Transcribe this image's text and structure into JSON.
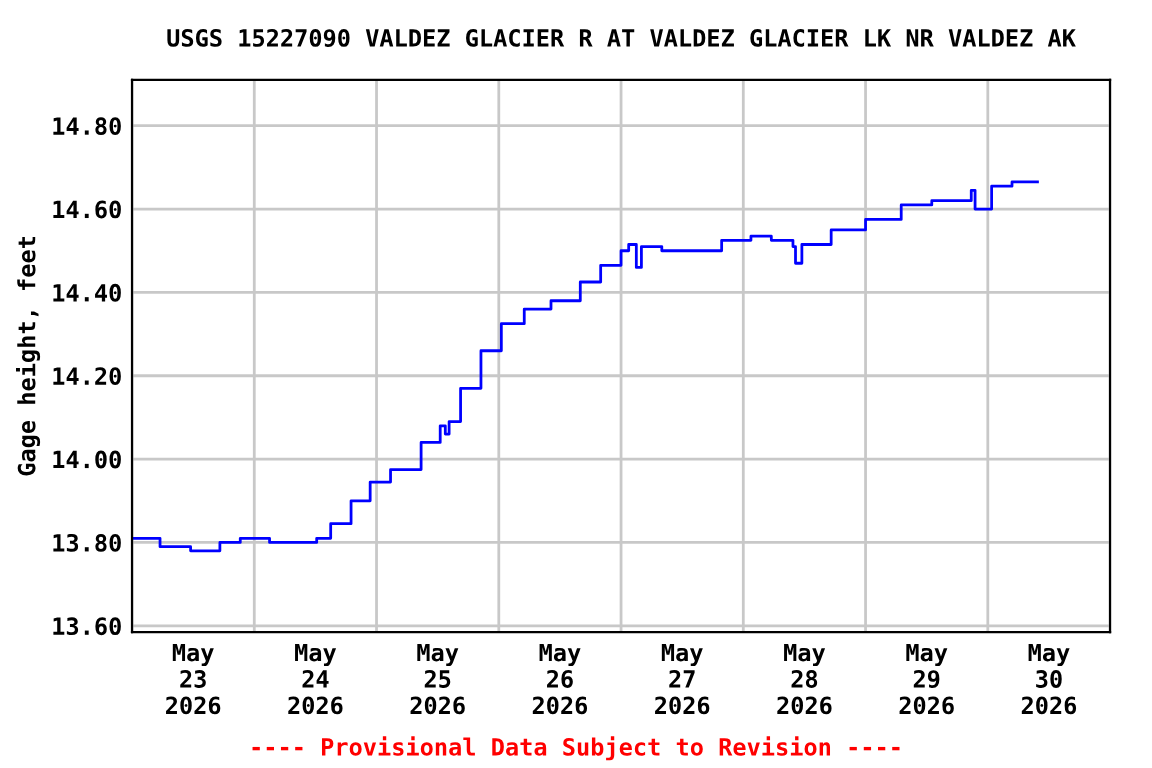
{
  "chart_data": {
    "type": "step",
    "title": "USGS 15227090 VALDEZ GLACIER R AT VALDEZ GLACIER LK NR VALDEZ AK",
    "ylabel": "Gage height, feet",
    "annotations": [
      "---- Provisional Data Subject to Revision ----"
    ],
    "x": [
      "2026-05-23T00:00",
      "2026-05-23T05:30",
      "2026-05-23T11:30",
      "2026-05-23T17:15",
      "2026-05-23T21:15",
      "2026-05-24T00:00",
      "2026-05-24T03:00",
      "2026-05-24T09:00",
      "2026-05-24T12:15",
      "2026-05-24T15:00",
      "2026-05-24T19:00",
      "2026-05-24T22:45",
      "2026-05-25T02:45",
      "2026-05-25T08:45",
      "2026-05-25T12:30",
      "2026-05-25T13:30",
      "2026-05-25T14:15",
      "2026-05-25T16:30",
      "2026-05-25T20:30",
      "2026-05-26T00:30",
      "2026-05-26T05:00",
      "2026-05-26T10:15",
      "2026-05-26T16:00",
      "2026-05-26T20:00",
      "2026-05-27T00:00",
      "2026-05-27T01:30",
      "2026-05-27T03:00",
      "2026-05-27T04:00",
      "2026-05-27T08:00",
      "2026-05-27T13:45",
      "2026-05-27T19:45",
      "2026-05-28T01:30",
      "2026-05-28T05:30",
      "2026-05-28T09:45",
      "2026-05-28T10:15",
      "2026-05-28T11:30",
      "2026-05-28T17:15",
      "2026-05-29T00:00",
      "2026-05-29T07:00",
      "2026-05-29T13:00",
      "2026-05-29T20:45",
      "2026-05-29T21:30",
      "2026-05-30T00:45",
      "2026-05-30T04:45",
      "2026-05-30T09:45"
    ],
    "series": [
      {
        "color": "#0000ff",
        "values": [
          13.81,
          13.79,
          13.78,
          13.8,
          13.81,
          13.81,
          13.8,
          13.8,
          13.81,
          13.845,
          13.9,
          13.945,
          13.975,
          14.04,
          14.08,
          14.06,
          14.09,
          14.17,
          14.26,
          14.325,
          14.36,
          14.38,
          14.425,
          14.465,
          14.5,
          14.515,
          14.46,
          14.51,
          14.5,
          14.5,
          14.525,
          14.535,
          14.525,
          14.51,
          14.47,
          14.515,
          14.55,
          14.575,
          14.61,
          14.62,
          14.645,
          14.6,
          14.655,
          14.665,
          14.665
        ]
      }
    ],
    "xlim": [
      "2026-05-23T00:00",
      "2026-05-31T00:00"
    ],
    "xticks": [
      {
        "value": "2026-05-23T00:00",
        "label": null
      },
      {
        "value": "2026-05-23T12:00",
        "label": "May\n23\n2026"
      },
      {
        "value": "2026-05-24T00:00",
        "label": null
      },
      {
        "value": "2026-05-24T12:00",
        "label": "May\n24\n2026"
      },
      {
        "value": "2026-05-25T00:00",
        "label": null
      },
      {
        "value": "2026-05-25T12:00",
        "label": "May\n25\n2026"
      },
      {
        "value": "2026-05-26T00:00",
        "label": null
      },
      {
        "value": "2026-05-26T12:00",
        "label": "May\n26\n2026"
      },
      {
        "value": "2026-05-27T00:00",
        "label": null
      },
      {
        "value": "2026-05-27T12:00",
        "label": "May\n27\n2026"
      },
      {
        "value": "2026-05-28T00:00",
        "label": null
      },
      {
        "value": "2026-05-28T12:00",
        "label": "May\n28\n2026"
      },
      {
        "value": "2026-05-29T00:00",
        "label": null
      },
      {
        "value": "2026-05-29T12:00",
        "label": "May\n29\n2026"
      },
      {
        "value": "2026-05-30T00:00",
        "label": null
      },
      {
        "value": "2026-05-30T12:00",
        "label": "May\n30\n2026"
      },
      {
        "value": "2026-05-31T00:00",
        "label": null
      }
    ],
    "ylim": [
      13.585,
      14.91
    ],
    "yticks": [
      {
        "value": 13.6,
        "label": "13.60"
      },
      {
        "value": 13.8,
        "label": "13.80"
      },
      {
        "value": 14.0,
        "label": "14.00"
      },
      {
        "value": 14.2,
        "label": "14.20"
      },
      {
        "value": 14.4,
        "label": "14.40"
      },
      {
        "value": 14.6,
        "label": "14.60"
      },
      {
        "value": 14.8,
        "label": "14.80"
      }
    ],
    "grid": true
  }
}
